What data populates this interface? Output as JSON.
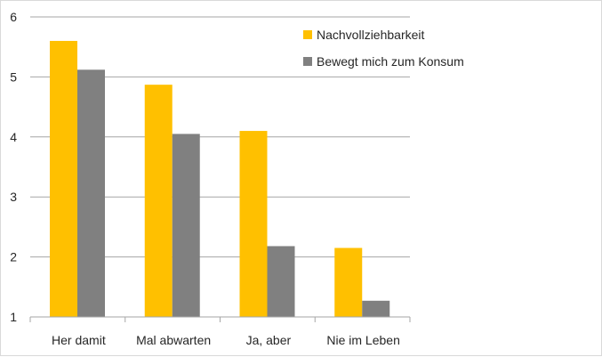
{
  "chart_data": {
    "type": "bar",
    "title": "",
    "xlabel": "",
    "ylabel": "",
    "categories": [
      "Her damit",
      "Mal abwarten",
      "Ja, aber",
      "Nie im Leben"
    ],
    "series": [
      {
        "name": "Nachvollziehbarkeit",
        "values": [
          5.6,
          4.87,
          4.1,
          2.15
        ],
        "color": "#FFC000"
      },
      {
        "name": "Bewegt mich zum Konsum",
        "values": [
          5.12,
          4.05,
          2.18,
          1.27
        ],
        "color": "#808080"
      }
    ],
    "ylim": [
      1,
      6
    ],
    "yticks": [
      "1",
      "2",
      "3",
      "4",
      "5",
      "6"
    ],
    "grid": true,
    "legend_position": "top-right"
  }
}
